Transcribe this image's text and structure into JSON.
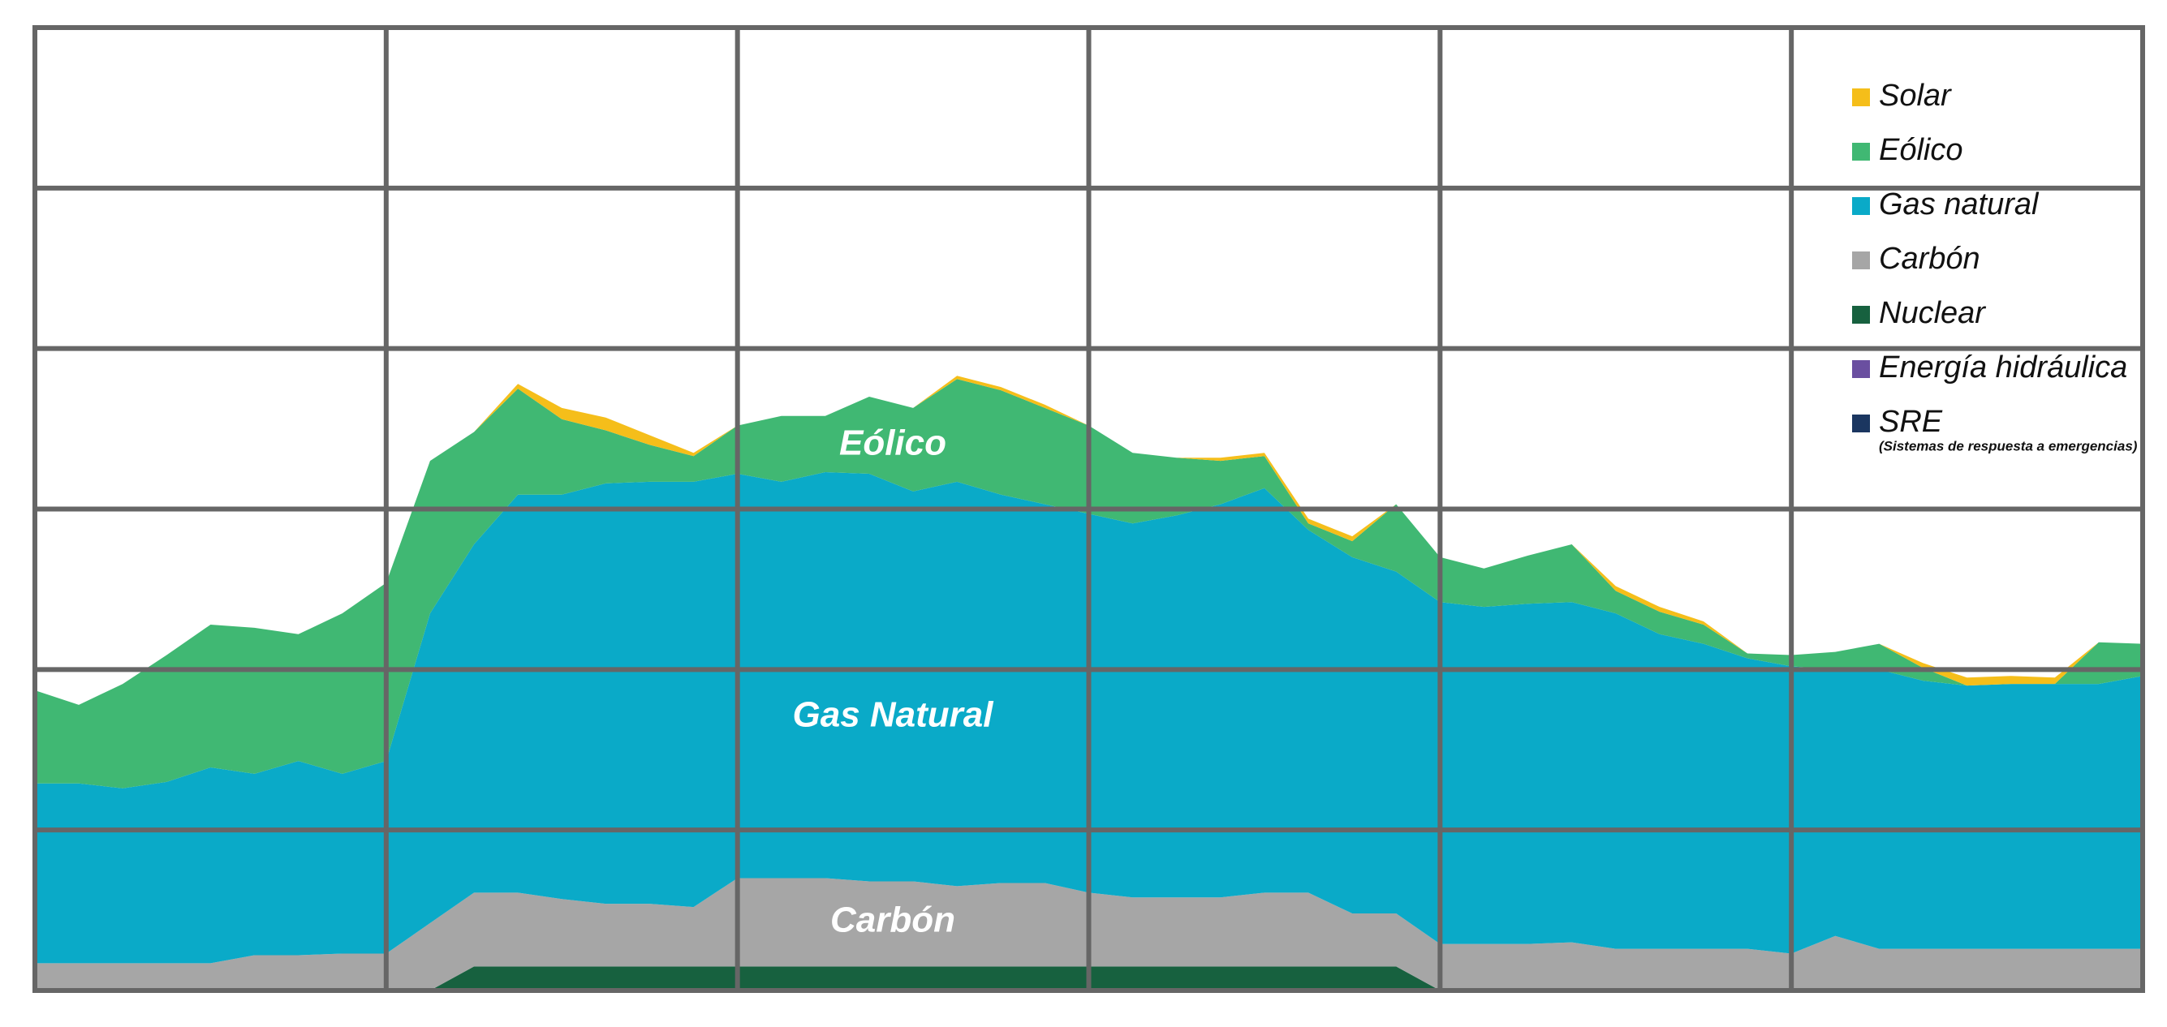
{
  "chart_data": {
    "type": "stacked_area",
    "x": [
      0,
      0.5,
      1,
      1.5,
      2,
      2.5,
      3,
      3.5,
      4,
      4.5,
      5,
      5.5,
      6,
      6.5,
      7,
      7.5,
      8,
      8.5,
      9,
      9.5,
      10,
      10.5,
      11,
      11.5,
      12,
      12.5,
      13,
      13.5,
      14,
      14.5,
      15,
      15.5,
      16,
      16.5,
      17,
      17.5,
      18,
      18.5,
      19,
      19.5,
      20,
      20.5,
      21,
      21.5,
      22,
      22.5,
      23,
      23.5,
      24
    ],
    "xlim": [
      0,
      24
    ],
    "xticks": [
      0,
      4,
      8,
      12,
      16,
      20,
      24
    ],
    "ylim": [
      0,
      6
    ],
    "yticks": [
      0,
      1,
      2,
      3,
      4,
      5,
      6
    ],
    "grid": true,
    "legend": "upper right",
    "series": [
      {
        "name": "Solar",
        "color": "#f5be1a",
        "values": [
          0,
          0,
          0,
          0,
          0,
          0,
          0,
          0,
          0,
          0,
          0,
          0.03,
          0.07,
          0.08,
          0.06,
          0.02,
          0,
          0,
          0,
          0,
          0,
          0.02,
          0.02,
          0.02,
          0,
          0,
          0,
          0.02,
          0.02,
          0.03,
          0.03,
          0,
          0,
          0,
          0,
          0,
          0.03,
          0.03,
          0.02,
          0,
          0,
          0,
          0,
          0.03,
          0.05,
          0.05,
          0.04,
          0,
          0
        ]
      },
      {
        "name": "Eólico",
        "color": "#40b873",
        "values": [
          0.58,
          0.49,
          0.65,
          0.79,
          0.89,
          0.91,
          0.79,
          1.0,
          1.11,
          0.95,
          0.7,
          0.66,
          0.47,
          0.33,
          0.23,
          0.16,
          0.3,
          0.41,
          0.35,
          0.48,
          0.52,
          0.64,
          0.65,
          0.6,
          0.55,
          0.44,
          0.36,
          0.27,
          0.2,
          0.04,
          0.1,
          0.42,
          0.28,
          0.24,
          0.3,
          0.36,
          0.14,
          0.14,
          0.12,
          0.03,
          0.07,
          0.11,
          0.16,
          0.08,
          0,
          0,
          0,
          0.26,
          0.2
        ]
      },
      {
        "name": "Gas natural",
        "color": "#0aaac8",
        "values": [
          1.12,
          1.12,
          1.09,
          1.13,
          1.22,
          1.13,
          1.21,
          1.12,
          1.2,
          1.93,
          2.17,
          2.48,
          2.52,
          2.62,
          2.63,
          2.65,
          2.52,
          2.47,
          2.53,
          2.54,
          2.43,
          2.52,
          2.42,
          2.36,
          2.36,
          2.33,
          2.38,
          2.45,
          2.52,
          2.26,
          2.22,
          2.13,
          2.13,
          2.1,
          2.12,
          2.12,
          2.09,
          1.96,
          1.9,
          1.81,
          1.79,
          1.66,
          1.74,
          1.67,
          1.64,
          1.65,
          1.65,
          1.65,
          1.7
        ]
      },
      {
        "name": "Carbón",
        "color": "#a6a6a6",
        "values": [
          0.17,
          0.17,
          0.17,
          0.17,
          0.17,
          0.22,
          0.22,
          0.23,
          0.23,
          0.42,
          0.46,
          0.46,
          0.42,
          0.39,
          0.39,
          0.37,
          0.55,
          0.55,
          0.55,
          0.53,
          0.53,
          0.5,
          0.52,
          0.52,
          0.46,
          0.43,
          0.43,
          0.43,
          0.46,
          0.46,
          0.33,
          0.33,
          0.29,
          0.29,
          0.29,
          0.3,
          0.26,
          0.26,
          0.26,
          0.26,
          0.23,
          0.34,
          0.26,
          0.26,
          0.26,
          0.26,
          0.26,
          0.26,
          0.26
        ]
      },
      {
        "name": "Nuclear",
        "color": "#17613f",
        "values": [
          0,
          0,
          0,
          0,
          0,
          0,
          0,
          0,
          0,
          0,
          0.15,
          0.15,
          0.15,
          0.15,
          0.15,
          0.15,
          0.15,
          0.15,
          0.15,
          0.15,
          0.15,
          0.15,
          0.15,
          0.15,
          0.15,
          0.15,
          0.15,
          0.15,
          0.15,
          0.15,
          0.15,
          0.15,
          0,
          0,
          0,
          0,
          0,
          0,
          0,
          0,
          0,
          0,
          0,
          0,
          0,
          0,
          0,
          0,
          0
        ]
      },
      {
        "name": "Energía hidráulica",
        "color": "#6a4fa0",
        "values": [
          0,
          0,
          0,
          0,
          0,
          0,
          0,
          0,
          0,
          0,
          0,
          0,
          0,
          0,
          0,
          0,
          0,
          0,
          0,
          0,
          0,
          0,
          0,
          0,
          0,
          0,
          0,
          0,
          0,
          0,
          0,
          0,
          0,
          0,
          0,
          0,
          0,
          0,
          0,
          0,
          0,
          0,
          0,
          0,
          0,
          0,
          0,
          0,
          0
        ]
      },
      {
        "name": "SRE",
        "color": "#1b3660",
        "values": [
          0,
          0,
          0,
          0,
          0,
          0,
          0,
          0,
          0,
          0,
          0,
          0,
          0,
          0,
          0,
          0,
          0,
          0,
          0,
          0,
          0,
          0,
          0,
          0,
          0,
          0,
          0,
          0,
          0,
          0,
          0,
          0,
          0,
          0,
          0,
          0,
          0,
          0,
          0,
          0,
          0,
          0,
          0,
          0,
          0,
          0,
          0,
          0,
          0
        ]
      }
    ],
    "legend_note": "(Sistemas de respuesta a emergencias)",
    "annotations": [
      {
        "text": "Eólico"
      },
      {
        "text": "Gas Natural"
      },
      {
        "text": "Carbón"
      }
    ]
  }
}
